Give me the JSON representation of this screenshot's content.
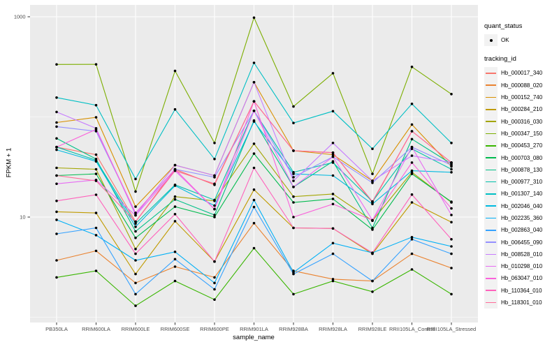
{
  "figure": {
    "title": "",
    "x_axis_label": "sample_name",
    "y_axis_label": "FPKM + 1"
  },
  "legend": {
    "quant_status": {
      "title": "quant_status",
      "items": [
        {
          "label": "OK",
          "symbol": "black-point"
        }
      ]
    },
    "tracking_id": {
      "title": "tracking_id"
    }
  },
  "colors": {
    "page_bg": "#FFFFFF",
    "panel_bg": "#EBEBEB",
    "gridline": "#FFFFFF",
    "legend_key_bg": "#F2F2F2",
    "point": "#000000",
    "tick_text": "#4D4D4D",
    "tick_mark": "#333333",
    "axis_title_text": "#000000"
  },
  "chart_data": {
    "type": "line",
    "title": "",
    "xlabel": "sample_name",
    "ylabel": "FPKM + 1",
    "legend_position": "right",
    "grid": true,
    "points": "black filled dot at every observation (quant_status = OK)",
    "x_categories": [
      "PB350LA",
      "RRIM600LA",
      "RRIM600LE",
      "RRIM600SE",
      "RRIM600PE",
      "RRIM901LA",
      "RRIM928BA",
      "RRIM928LA",
      "RRIM928LE",
      "RRII105LA_Control",
      "RRII105LA_Stressed"
    ],
    "y_axis": {
      "scale": "log10",
      "labeled_ticks": [
        {
          "value": 1000,
          "label": "1000"
        },
        {
          "value": 10,
          "label": "10"
        }
      ],
      "minor_gridlines": [
        100,
        1
      ],
      "range_approx": [
        0.9,
        1300
      ]
    },
    "series": [
      {
        "name": "Hb_000017_340",
        "color": "#F8766D",
        "values": [
          50,
          42,
          9,
          30,
          21,
          143,
          46,
          44,
          14,
          72,
          35
        ]
      },
      {
        "name": "Hb_000088_020",
        "color": "#EA8331",
        "values": [
          3.7,
          4.6,
          2.2,
          3.2,
          2.5,
          8.7,
          2.9,
          2.4,
          2.3,
          4.3,
          3.1
        ]
      },
      {
        "name": "Hb_000152_740",
        "color": "#D89000",
        "values": [
          88,
          99,
          12.7,
          33,
          26,
          222,
          46,
          42,
          23,
          84,
          32
        ]
      },
      {
        "name": "Hb_000284_210",
        "color": "#C09B00",
        "values": [
          11.3,
          11,
          2.7,
          9.1,
          3.6,
          18.8,
          7.8,
          7.7,
          4.3,
          14,
          8.9
        ]
      },
      {
        "name": "Hb_000316_030",
        "color": "#A3A500",
        "values": [
          31,
          30,
          4.8,
          16,
          14.5,
          54,
          16,
          17,
          9.2,
          28,
          14
        ]
      },
      {
        "name": "Hb_000347_150",
        "color": "#7CAE00",
        "values": [
          334,
          335,
          18,
          288,
          55,
          980,
          127,
          273,
          27,
          316,
          169
        ]
      },
      {
        "name": "Hb_000453_270",
        "color": "#39B600",
        "values": [
          2.5,
          2.9,
          1.3,
          2.3,
          1.5,
          4.9,
          1.7,
          2.3,
          1.8,
          3.0,
          1.7
        ]
      },
      {
        "name": "Hb_000703_080",
        "color": "#00BB4E",
        "values": [
          26,
          27,
          6.2,
          12.7,
          10,
          43,
          14,
          15.2,
          7.5,
          27,
          14.2
        ]
      },
      {
        "name": "Hb_000878_130",
        "color": "#00C087",
        "values": [
          61,
          38,
          7.2,
          15,
          10.5,
          92,
          20,
          36,
          7.8,
          60,
          34
        ]
      },
      {
        "name": "Hb_000977_310",
        "color": "#00C1AB",
        "values": [
          50,
          37,
          8.6,
          21,
          14.8,
          115,
          28,
          35,
          14.3,
          48,
          30
        ]
      },
      {
        "name": "Hb_001307_140",
        "color": "#00BFC4",
        "values": [
          156,
          131,
          24,
          119,
          38,
          347,
          87,
          114,
          48,
          135,
          55
        ]
      },
      {
        "name": "Hb_002046_040",
        "color": "#00BAE0",
        "values": [
          47,
          36,
          8.0,
          20.6,
          13,
          90,
          27,
          26,
          13.5,
          29,
          28
        ]
      },
      {
        "name": "Hb_002235_360",
        "color": "#00B0F6",
        "values": [
          9.4,
          6.6,
          3.7,
          4.5,
          2.2,
          14.8,
          2.8,
          5.5,
          4.4,
          6.3,
          5.1
        ]
      },
      {
        "name": "Hb_002863_040",
        "color": "#35A2FF",
        "values": [
          6.8,
          7.8,
          1.7,
          3.8,
          1.9,
          12.6,
          2.7,
          4.3,
          2.3,
          6.0,
          4.3
        ]
      },
      {
        "name": "Hb_006455_090",
        "color": "#9590FF",
        "values": [
          80,
          72,
          11,
          30,
          25,
          115,
          25,
          40,
          22,
          50,
          33
        ]
      },
      {
        "name": "Hb_008528_010",
        "color": "#C77CFF",
        "values": [
          112,
          77,
          10.5,
          33,
          26,
          222,
          23,
          55,
          23,
          41,
          35
        ]
      },
      {
        "name": "Hb_010298_010",
        "color": "#E76BF3",
        "values": [
          21.5,
          23.5,
          10.4,
          29,
          12,
          115,
          20,
          40,
          9.3,
          50,
          10.5
        ]
      },
      {
        "name": "Hb_063047_010",
        "color": "#FA62DB",
        "values": [
          50,
          75,
          11,
          30,
          12,
          143,
          10,
          13.5,
          9.3,
          35,
          12.2
        ]
      },
      {
        "name": "Hb_110364_010",
        "color": "#FF62BC",
        "values": [
          14.5,
          16.7,
          4.3,
          10.7,
          3.6,
          31,
          7.8,
          7.7,
          4.4,
          16.8,
          6.0
        ]
      },
      {
        "name": "Hb_118301_010",
        "color": "#FF6A98",
        "values": [
          26,
          23,
          9.0,
          29,
          21.5,
          143,
          46,
          44,
          14.3,
          72,
          35
        ]
      }
    ]
  }
}
